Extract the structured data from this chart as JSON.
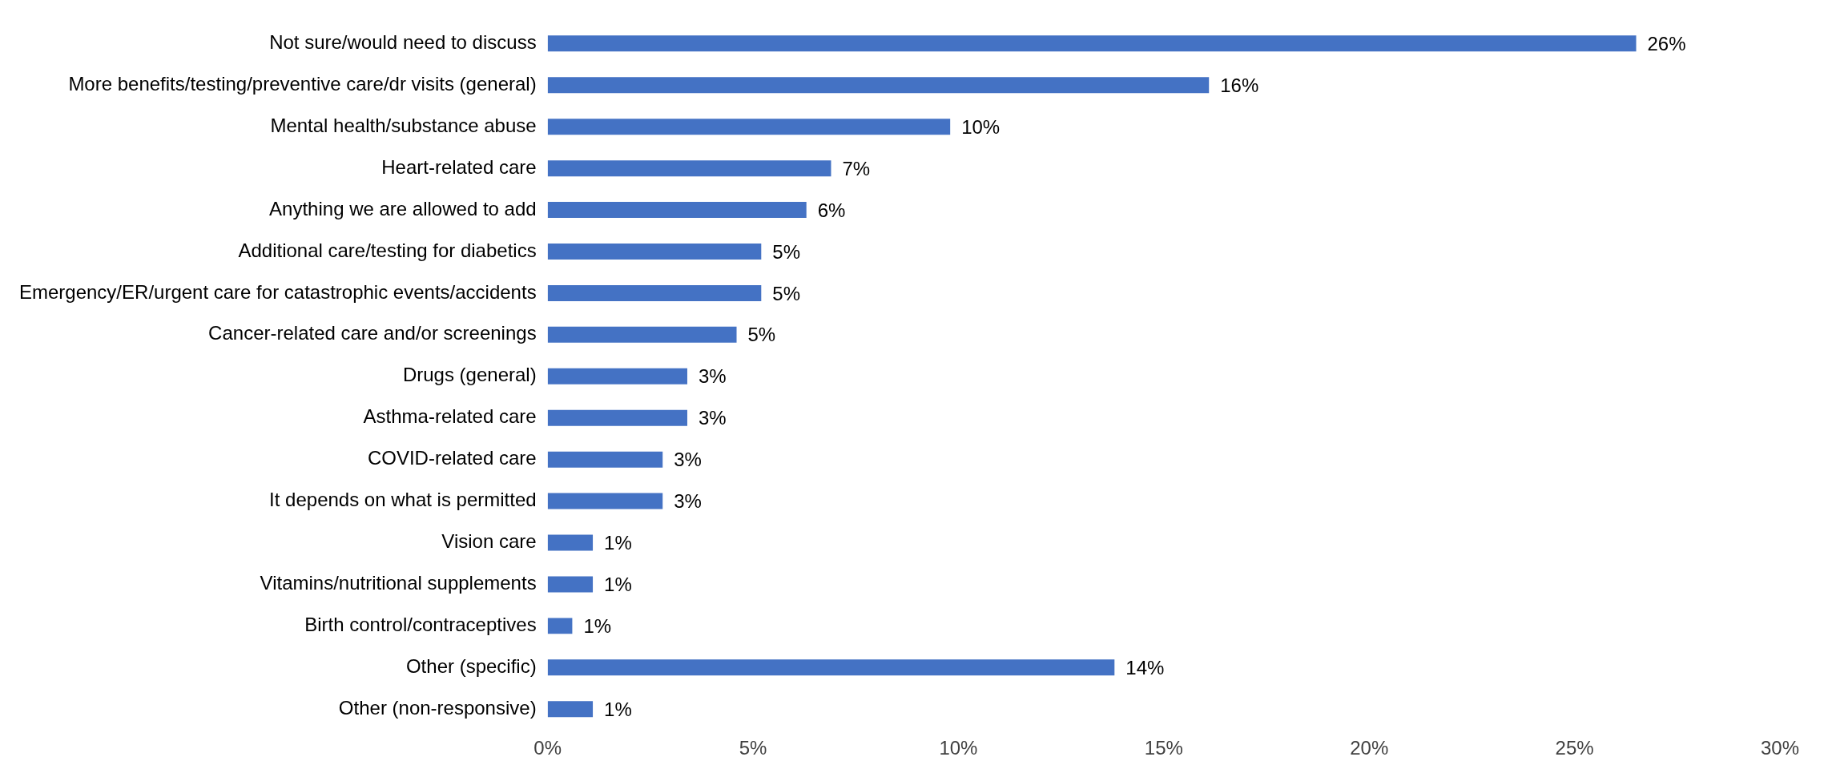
{
  "chart_data": {
    "type": "bar",
    "orientation": "horizontal",
    "categories": [
      "Not sure/would need to discuss",
      "More benefits/testing/preventive care/dr visits (general)",
      "Mental health/substance abuse",
      "Heart-related care",
      "Anything we are allowed to add",
      "Additional care/testing for diabetics",
      "Emergency/ER/urgent care for catastrophic events/accidents",
      "Cancer-related care and/or screenings",
      "Drugs (general)",
      "Asthma-related care",
      "COVID-related care",
      "It depends on what is permitted",
      "Vision care",
      "Vitamins/nutritional supplements",
      "Birth control/contraceptives",
      "Other (specific)",
      "Other (non-responsive)"
    ],
    "values": [
      26.5,
      16.1,
      9.8,
      6.9,
      6.3,
      5.2,
      5.2,
      4.6,
      3.4,
      3.4,
      2.8,
      2.8,
      1.1,
      1.1,
      0.6,
      13.8,
      1.1
    ],
    "value_labels": [
      "26%",
      "16%",
      "10%",
      "7%",
      "6%",
      "5%",
      "5%",
      "5%",
      "3%",
      "3%",
      "3%",
      "3%",
      "1%",
      "1%",
      "1%",
      "14%",
      "1%"
    ],
    "color": "#4472c4",
    "xlim": [
      0,
      30
    ],
    "xticks": [
      {
        "value": 0,
        "label": "0%"
      },
      {
        "value": 5,
        "label": "5%"
      },
      {
        "value": 10,
        "label": "10%"
      },
      {
        "value": 15,
        "label": "15%"
      },
      {
        "value": 20,
        "label": "20%"
      },
      {
        "value": 25,
        "label": "25%"
      },
      {
        "value": 30,
        "label": "30%"
      }
    ],
    "grid": false,
    "legend": false
  }
}
